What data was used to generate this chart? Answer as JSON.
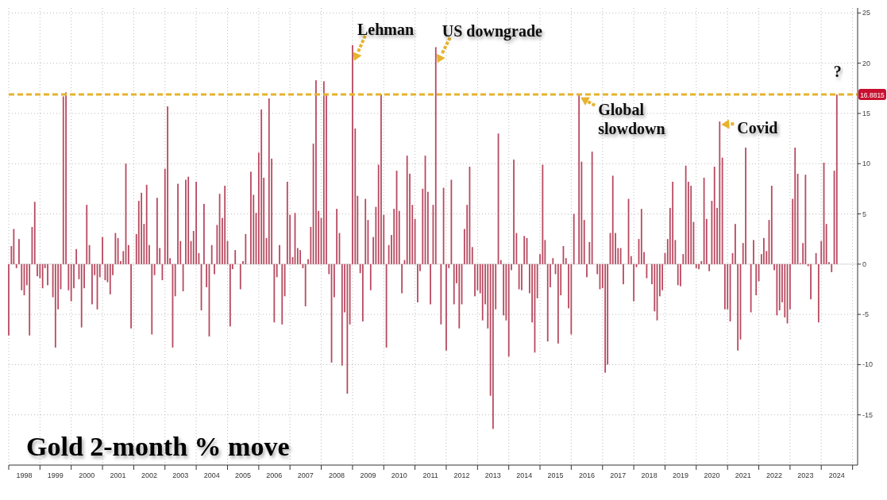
{
  "chart_data": {
    "type": "bar",
    "title": "Gold 2-month % move",
    "x": [
      "1998-01",
      "1998-02",
      "1998-03",
      "1998-04",
      "1998-05",
      "1998-06",
      "1998-07",
      "1998-08",
      "1998-09",
      "1998-10",
      "1998-11",
      "1998-12",
      "1999-01",
      "1999-02",
      "1999-03",
      "1999-04",
      "1999-05",
      "1999-06",
      "1999-07",
      "1999-08",
      "1999-09",
      "1999-10",
      "1999-11",
      "1999-12",
      "2000-01",
      "2000-02",
      "2000-03",
      "2000-04",
      "2000-05",
      "2000-06",
      "2000-07",
      "2000-08",
      "2000-09",
      "2000-10",
      "2000-11",
      "2000-12",
      "2001-01",
      "2001-02",
      "2001-03",
      "2001-04",
      "2001-05",
      "2001-06",
      "2001-07",
      "2001-08",
      "2001-09",
      "2001-10",
      "2001-11",
      "2001-12",
      "2002-01",
      "2002-02",
      "2002-03",
      "2002-04",
      "2002-05",
      "2002-06",
      "2002-07",
      "2002-08",
      "2002-09",
      "2002-10",
      "2002-11",
      "2002-12",
      "2003-01",
      "2003-02",
      "2003-03",
      "2003-04",
      "2003-05",
      "2003-06",
      "2003-07",
      "2003-08",
      "2003-09",
      "2003-10",
      "2003-11",
      "2003-12",
      "2004-01",
      "2004-02",
      "2004-03",
      "2004-04",
      "2004-05",
      "2004-06",
      "2004-07",
      "2004-08",
      "2004-09",
      "2004-10",
      "2004-11",
      "2004-12",
      "2005-01",
      "2005-02",
      "2005-03",
      "2005-04",
      "2005-05",
      "2005-06",
      "2005-07",
      "2005-08",
      "2005-09",
      "2005-10",
      "2005-11",
      "2005-12",
      "2006-01",
      "2006-02",
      "2006-03",
      "2006-04",
      "2006-05",
      "2006-06",
      "2006-07",
      "2006-08",
      "2006-09",
      "2006-10",
      "2006-11",
      "2006-12",
      "2007-01",
      "2007-02",
      "2007-03",
      "2007-04",
      "2007-05",
      "2007-06",
      "2007-07",
      "2007-08",
      "2007-09",
      "2007-10",
      "2007-11",
      "2007-12",
      "2008-01",
      "2008-02",
      "2008-03",
      "2008-04",
      "2008-05",
      "2008-06",
      "2008-07",
      "2008-08",
      "2008-09",
      "2008-10",
      "2008-11",
      "2008-12",
      "2009-01",
      "2009-02",
      "2009-03",
      "2009-04",
      "2009-05",
      "2009-06",
      "2009-07",
      "2009-08",
      "2009-09",
      "2009-10",
      "2009-11",
      "2009-12",
      "2010-01",
      "2010-02",
      "2010-03",
      "2010-04",
      "2010-05",
      "2010-06",
      "2010-07",
      "2010-08",
      "2010-09",
      "2010-10",
      "2010-11",
      "2010-12",
      "2011-01",
      "2011-02",
      "2011-03",
      "2011-04",
      "2011-05",
      "2011-06",
      "2011-07",
      "2011-08",
      "2011-09",
      "2011-10",
      "2011-11",
      "2011-12",
      "2012-01",
      "2012-02",
      "2012-03",
      "2012-04",
      "2012-05",
      "2012-06",
      "2012-07",
      "2012-08",
      "2012-09",
      "2012-10",
      "2012-11",
      "2012-12",
      "2013-01",
      "2013-02",
      "2013-03",
      "2013-04",
      "2013-05",
      "2013-06",
      "2013-07",
      "2013-08",
      "2013-09",
      "2013-10",
      "2013-11",
      "2013-12",
      "2014-01",
      "2014-02",
      "2014-03",
      "2014-04",
      "2014-05",
      "2014-06",
      "2014-07",
      "2014-08",
      "2014-09",
      "2014-10",
      "2014-11",
      "2014-12",
      "2015-01",
      "2015-02",
      "2015-03",
      "2015-04",
      "2015-05",
      "2015-06",
      "2015-07",
      "2015-08",
      "2015-09",
      "2015-10",
      "2015-11",
      "2015-12",
      "2016-01",
      "2016-02",
      "2016-03",
      "2016-04",
      "2016-05",
      "2016-06",
      "2016-07",
      "2016-08",
      "2016-09",
      "2016-10",
      "2016-11",
      "2016-12",
      "2017-01",
      "2017-02",
      "2017-03",
      "2017-04",
      "2017-05",
      "2017-06",
      "2017-07",
      "2017-08",
      "2017-09",
      "2017-10",
      "2017-11",
      "2017-12",
      "2018-01",
      "2018-02",
      "2018-03",
      "2018-04",
      "2018-05",
      "2018-06",
      "2018-07",
      "2018-08",
      "2018-09",
      "2018-10",
      "2018-11",
      "2018-12",
      "2019-01",
      "2019-02",
      "2019-03",
      "2019-04",
      "2019-05",
      "2019-06",
      "2019-07",
      "2019-08",
      "2019-09",
      "2019-10",
      "2019-11",
      "2019-12",
      "2020-01",
      "2020-02",
      "2020-03",
      "2020-04",
      "2020-05",
      "2020-06",
      "2020-07",
      "2020-08",
      "2020-09",
      "2020-10",
      "2020-11",
      "2020-12",
      "2021-01",
      "2021-02",
      "2021-03",
      "2021-04",
      "2021-05",
      "2021-06",
      "2021-07",
      "2021-08",
      "2021-09",
      "2021-10",
      "2021-11",
      "2021-12",
      "2022-01",
      "2022-02",
      "2022-03",
      "2022-04",
      "2022-05",
      "2022-06",
      "2022-07",
      "2022-08",
      "2022-09",
      "2022-10",
      "2022-11",
      "2022-12",
      "2023-01",
      "2023-02",
      "2023-03",
      "2023-04",
      "2023-05",
      "2023-06",
      "2023-07",
      "2023-08",
      "2023-09",
      "2023-10",
      "2023-11",
      "2023-12",
      "2024-01",
      "2024-02",
      "2024-03",
      "2024-04",
      "2024-05",
      "2024-06",
      "2024-07"
    ],
    "series": [
      {
        "color": "#b84a60",
        "values": [
          -7.1,
          1.8,
          3.5,
          -0.4,
          2.5,
          -2.6,
          -3.1,
          -2.1,
          -7.1,
          3.7,
          6.2,
          -1.2,
          -1.4,
          -2.4,
          -0.4,
          -2.1,
          null,
          -3.3,
          -8.3,
          -4.5,
          -2.5,
          16.7,
          17.1,
          -2.6,
          -3.7,
          -2.4,
          1.5,
          -1.5,
          -6.3,
          -2.4,
          5.9,
          1.9,
          -4.0,
          -1.1,
          -4.5,
          -1.3,
          2.7,
          -1.6,
          -1.8,
          -3.0,
          -1.1,
          3.1,
          2.6,
          0.3,
          1.3,
          10.0,
          1.9,
          -6.4,
          null,
          3.0,
          6.3,
          7.1,
          4.0,
          7.9,
          1.9,
          -7.0,
          -1.1,
          6.6,
          1.6,
          -1.6,
          9.5,
          15.7,
          0.6,
          -8.3,
          -3.2,
          8.0,
          2.3,
          -2.7,
          8.4,
          8.7,
          2.3,
          3.3,
          8.2,
          1.1,
          -4.6,
          6.0,
          -2.3,
          -7.2,
          1.9,
          -1.0,
          3.9,
          7.0,
          4.6,
          7.8,
          2.3,
          -6.2,
          -0.5,
          1.4,
          null,
          -2.5,
          0.3,
          3.0,
          null,
          9.2,
          6.9,
          5.1,
          11.1,
          15.4,
          8.6,
          2.6,
          16.5,
          10.5,
          -5.8,
          -1.3,
          1.9,
          -6.0,
          -3.2,
          8.2,
          4.9,
          0.7,
          5.1,
          1.6,
          1.4,
          -0.4,
          -4.2,
          0.5,
          3.7,
          12.0,
          18.3,
          5.3,
          4.6,
          18.2,
          16.8,
          -1.0,
          -9.8,
          -3.3,
          5.5,
          3.1,
          -10.1,
          -4.8,
          -12.9,
          -6.0,
          21.8,
          13.5,
          6.8,
          -0.9,
          -5.7,
          6.5,
          4.4,
          -2.6,
          2.7,
          5.7,
          9.9,
          16.9,
          4.9,
          -8.3,
          1.9,
          2.9,
          5.5,
          9.3,
          5.3,
          -2.9,
          0.4,
          10.8,
          9.0,
          5.9,
          4.5,
          -3.8,
          -0.7,
          7.5,
          10.8,
          7.2,
          -4.0,
          5.9,
          21.6,
          null,
          -6.0,
          7.6,
          -8.6,
          -0.4,
          8.4,
          -4.0,
          -1.9,
          -6.4,
          -4.0,
          3.5,
          5.9,
          9.7,
          1.7,
          -3.2,
          -2.6,
          -2.9,
          -5.6,
          -4.0,
          -6.4,
          -13.1,
          -16.4,
          -4.5,
          13.0,
          0.4,
          -5.1,
          -5.6,
          -9.2,
          -0.6,
          10.4,
          3.1,
          -2.5,
          -2.6,
          2.8,
          2.6,
          -2.9,
          -5.8,
          -8.8,
          -3.4,
          1.0,
          9.9,
          2.4,
          -7.7,
          -2.3,
          0.6,
          -1.0,
          -7.9,
          -3.1,
          1.8,
          0.6,
          -4.4,
          -7.0,
          5.0,
          null,
          16.9,
          10.2,
          4.4,
          -1.3,
          2.2,
          11.2,
          null,
          -1.0,
          -2.5,
          -2.4,
          -10.8,
          -10.0,
          3.1,
          8.8,
          3.1,
          1.6,
          1.6,
          -2.0,
          null,
          6.5,
          0.8,
          -3.7,
          -0.3,
          2.5,
          5.5,
          1.2,
          -1.4,
          null,
          -2.0,
          -4.7,
          -5.6,
          -3.2,
          -2.6,
          1.1,
          2.5,
          5.6,
          8.2,
          2.4,
          -2.1,
          -2.2,
          1.0,
          9.8,
          8.2,
          7.8,
          4.2,
          -0.4,
          -0.5,
          0.3,
          8.6,
          4.5,
          -0.7,
          6.3,
          9.7,
          5.6,
          14.2,
          10.6,
          -4.5,
          -4.5,
          -5.7,
          1.1,
          4.0,
          -8.6,
          -7.5,
          2.1,
          11.6,
          null,
          -4.8,
          2.4,
          -3.1,
          -1.7,
          1.0,
          2.6,
          1.3,
          4.4,
          7.8,
          -0.6,
          -5.1,
          -4.6,
          -3.8,
          -5.3,
          -5.9,
          -4.5,
          6.5,
          11.6,
          9.0,
          0.1,
          2.1,
          8.9,
          -0.2,
          -3.5,
          null,
          1.1,
          -5.8,
          2.3,
          10.1,
          4.0,
          0.2,
          -0.8,
          9.3,
          16.8815
        ]
      }
    ],
    "xlim": [
      "1998-01",
      "2025-03"
    ],
    "xticks": [
      {
        "value": "1998-01",
        "label": null
      },
      {
        "value": "1998-07",
        "label": "1998"
      },
      {
        "value": "1999-01",
        "label": null
      },
      {
        "value": "1999-07",
        "label": "1999"
      },
      {
        "value": "2000-01",
        "label": null
      },
      {
        "value": "2000-07",
        "label": "2000"
      },
      {
        "value": "2001-01",
        "label": null
      },
      {
        "value": "2001-07",
        "label": "2001"
      },
      {
        "value": "2002-01",
        "label": null
      },
      {
        "value": "2002-07",
        "label": "2002"
      },
      {
        "value": "2003-01",
        "label": null
      },
      {
        "value": "2003-07",
        "label": "2003"
      },
      {
        "value": "2004-01",
        "label": null
      },
      {
        "value": "2004-07",
        "label": "2004"
      },
      {
        "value": "2005-01",
        "label": null
      },
      {
        "value": "2005-07",
        "label": "2005"
      },
      {
        "value": "2006-01",
        "label": null
      },
      {
        "value": "2006-07",
        "label": "2006"
      },
      {
        "value": "2007-01",
        "label": null
      },
      {
        "value": "2007-07",
        "label": "2007"
      },
      {
        "value": "2008-01",
        "label": null
      },
      {
        "value": "2008-07",
        "label": "2008"
      },
      {
        "value": "2009-01",
        "label": null
      },
      {
        "value": "2009-07",
        "label": "2009"
      },
      {
        "value": "2010-01",
        "label": null
      },
      {
        "value": "2010-07",
        "label": "2010"
      },
      {
        "value": "2011-01",
        "label": null
      },
      {
        "value": "2011-07",
        "label": "2011"
      },
      {
        "value": "2012-01",
        "label": null
      },
      {
        "value": "2012-07",
        "label": "2012"
      },
      {
        "value": "2013-01",
        "label": null
      },
      {
        "value": "2013-07",
        "label": "2013"
      },
      {
        "value": "2014-01",
        "label": null
      },
      {
        "value": "2014-07",
        "label": "2014"
      },
      {
        "value": "2015-01",
        "label": null
      },
      {
        "value": "2015-07",
        "label": "2015"
      },
      {
        "value": "2016-01",
        "label": null
      },
      {
        "value": "2016-07",
        "label": "2016"
      },
      {
        "value": "2017-01",
        "label": null
      },
      {
        "value": "2017-07",
        "label": "2017"
      },
      {
        "value": "2018-01",
        "label": null
      },
      {
        "value": "2018-07",
        "label": "2018"
      },
      {
        "value": "2019-01",
        "label": null
      },
      {
        "value": "2019-07",
        "label": "2019"
      },
      {
        "value": "2020-01",
        "label": null
      },
      {
        "value": "2020-07",
        "label": "2020"
      },
      {
        "value": "2021-01",
        "label": null
      },
      {
        "value": "2021-07",
        "label": "2021"
      },
      {
        "value": "2022-01",
        "label": null
      },
      {
        "value": "2022-07",
        "label": "2022"
      },
      {
        "value": "2023-01",
        "label": null
      },
      {
        "value": "2023-07",
        "label": "2023"
      },
      {
        "value": "2024-01",
        "label": null
      },
      {
        "value": "2024-07",
        "label": "2024"
      },
      {
        "value": "2025-01",
        "label": null
      }
    ],
    "ylim": [
      -20,
      25.5
    ],
    "yticks": [
      -15,
      -10,
      -5,
      0,
      5,
      10,
      15,
      20,
      25
    ],
    "grid": true,
    "ref_lines": [
      {
        "axis": "y",
        "value": 16.8815,
        "label": "16.8815",
        "color": "#e6b32e",
        "line_style": "dashed"
      }
    ],
    "annotations": [
      {
        "text": "Lehman",
        "x": "2009-01",
        "y": 21.8
      },
      {
        "text": "US downgrade",
        "x": "2011-09",
        "y": 21.6
      },
      {
        "text": "Global slowdown",
        "x": "2016-04",
        "y": 16.9
      },
      {
        "text": "Covid",
        "x": "2020-10",
        "y": 14.2
      },
      {
        "text": "?",
        "x": "2024-07",
        "y": 16.8815
      }
    ]
  }
}
